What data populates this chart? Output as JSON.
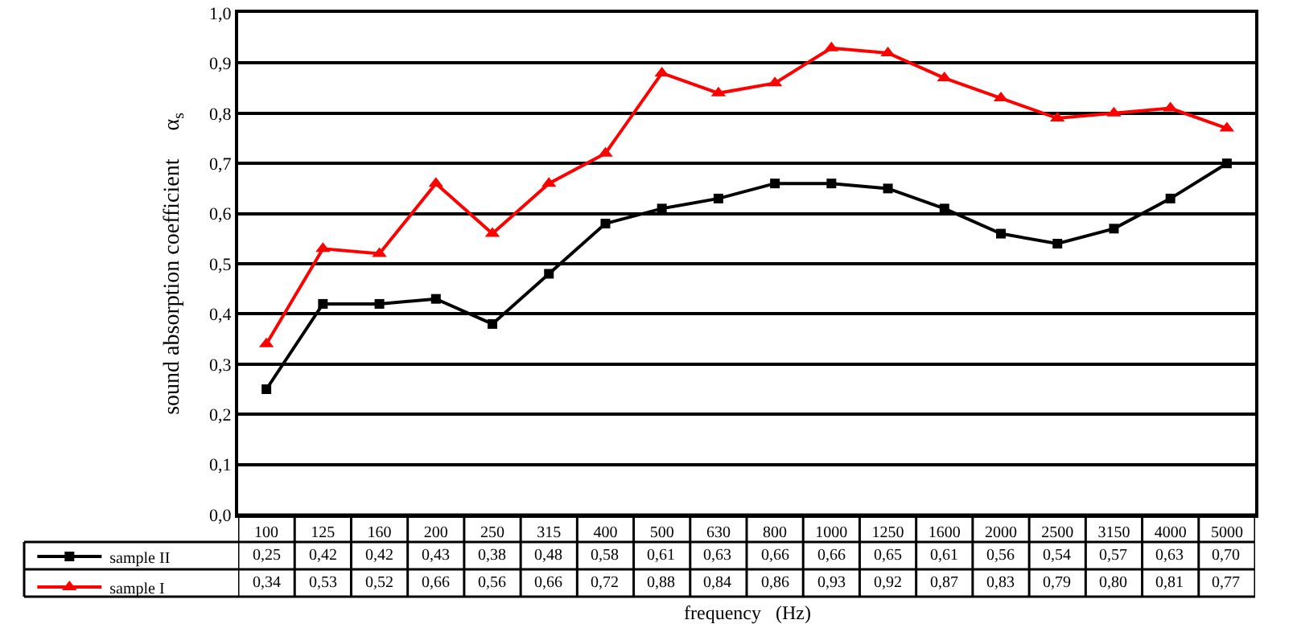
{
  "chart_data": {
    "type": "line",
    "xlabel": "frequency   (Hz)",
    "ylabel": "sound absorption coefficient     α$_{s}$",
    "categories": [
      "100",
      "125",
      "160",
      "200",
      "250",
      "315",
      "400",
      "500",
      "630",
      "800",
      "1000",
      "1250",
      "1600",
      "2000",
      "2500",
      "3150",
      "4000",
      "5000"
    ],
    "series": [
      {
        "name": "sample II",
        "color": "#000000",
        "marker": "square",
        "values": [
          0.25,
          0.42,
          0.42,
          0.43,
          0.38,
          0.48,
          0.58,
          0.61,
          0.63,
          0.66,
          0.66,
          0.65,
          0.61,
          0.56,
          0.54,
          0.57,
          0.63,
          0.7
        ],
        "value_labels": [
          "0,25",
          "0,42",
          "0,42",
          "0,43",
          "0,38",
          "0,48",
          "0,58",
          "0,61",
          "0,63",
          "0,66",
          "0,66",
          "0,65",
          "0,61",
          "0,56",
          "0,54",
          "0,57",
          "0,63",
          "0,70"
        ]
      },
      {
        "name": "sample I",
        "color": "#ff0000",
        "marker": "triangle",
        "values": [
          0.34,
          0.53,
          0.52,
          0.66,
          0.56,
          0.66,
          0.72,
          0.88,
          0.84,
          0.86,
          0.93,
          0.92,
          0.87,
          0.83,
          0.79,
          0.8,
          0.81,
          0.77
        ],
        "value_labels": [
          "0,34",
          "0,53",
          "0,52",
          "0,66",
          "0,56",
          "0,66",
          "0,72",
          "0,88",
          "0,84",
          "0,86",
          "0,93",
          "0,92",
          "0,87",
          "0,83",
          "0,79",
          "0,80",
          "0,81",
          "0,77"
        ]
      }
    ],
    "ylim": [
      0,
      1
    ],
    "yticks": [
      {
        "value": 0,
        "label": "0,0"
      },
      {
        "value": 0.1,
        "label": "0,1"
      },
      {
        "value": 0.2,
        "label": "0,2"
      },
      {
        "value": 0.3,
        "label": "0,3"
      },
      {
        "value": 0.4,
        "label": "0,4"
      },
      {
        "value": 0.5,
        "label": "0,5"
      },
      {
        "value": 0.6,
        "label": "0,6"
      },
      {
        "value": 0.7,
        "label": "0,7"
      },
      {
        "value": 0.8,
        "label": "0,8"
      },
      {
        "value": 0.9,
        "label": "0,9"
      },
      {
        "value": 1,
        "label": "1,0"
      }
    ],
    "grid": "y",
    "legend": "bottom left",
    "line_style": "solid"
  }
}
